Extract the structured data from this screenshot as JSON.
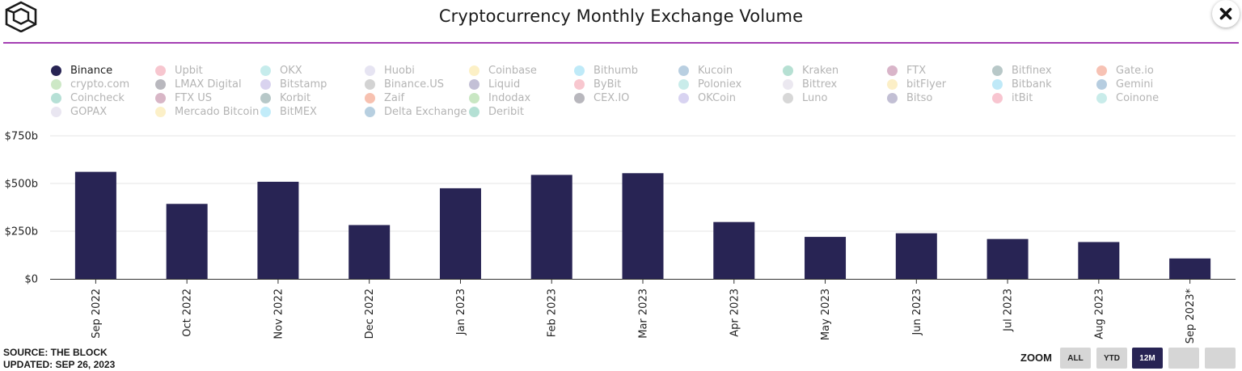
{
  "title": "Cryptocurrency Monthly Exchange Volume",
  "colors": {
    "bar": "#282454",
    "divider": "#a43fb3",
    "grid": "#e6e6e6"
  },
  "legend": [
    {
      "label": "Binance",
      "color": "#282454",
      "active": true
    },
    {
      "label": "Upbit",
      "color": "#f7c6cf",
      "active": false
    },
    {
      "label": "OKX",
      "color": "#c6ecec",
      "active": false
    },
    {
      "label": "Huobi",
      "color": "#e6e4f2",
      "active": false
    },
    {
      "label": "Coinbase",
      "color": "#fcf0c6",
      "active": false
    },
    {
      "label": "Bithumb",
      "color": "#bfeaf8",
      "active": false
    },
    {
      "label": "Kucoin",
      "color": "#b9cfe1",
      "active": false
    },
    {
      "label": "Kraken",
      "color": "#b6e0d3",
      "active": false
    },
    {
      "label": "FTX",
      "color": "#d9b5c9",
      "active": false
    },
    {
      "label": "Bitfinex",
      "color": "#b8c8c8",
      "active": false
    },
    {
      "label": "Gate.io",
      "color": "#f7c2b4",
      "active": false
    },
    {
      "label": "crypto.com",
      "color": "#cde8c6",
      "active": false
    },
    {
      "label": "LMAX Digital",
      "color": "#b9b8be",
      "active": false
    },
    {
      "label": "Bitstamp",
      "color": "#d9d3ef",
      "active": false
    },
    {
      "label": "Binance.US",
      "color": "#d3d3d3",
      "active": false
    },
    {
      "label": "Liquid",
      "color": "#c3c0d6",
      "active": false
    },
    {
      "label": "ByBit",
      "color": "#f8c7cf",
      "active": false
    },
    {
      "label": "Poloniex",
      "color": "#c9ecea",
      "active": false
    },
    {
      "label": "Bittrex",
      "color": "#ebe8f0",
      "active": false
    },
    {
      "label": "bitFlyer",
      "color": "#fcefc7",
      "active": false
    },
    {
      "label": "Bitbank",
      "color": "#bfe9f8",
      "active": false
    },
    {
      "label": "Gemini",
      "color": "#b6cde0",
      "active": false
    },
    {
      "label": "Coincheck",
      "color": "#b6e0d6",
      "active": false
    },
    {
      "label": "FTX US",
      "color": "#d8b6c6",
      "active": false
    },
    {
      "label": "Korbit",
      "color": "#b7c8c8",
      "active": false
    },
    {
      "label": "Zaif",
      "color": "#f7c1b0",
      "active": false
    },
    {
      "label": "Indodax",
      "color": "#c9e7c3",
      "active": false
    },
    {
      "label": "CEX.IO",
      "color": "#b8b7bd",
      "active": false
    },
    {
      "label": "OKCoin",
      "color": "#d8d3f1",
      "active": false
    },
    {
      "label": "Luno",
      "color": "#d7d7d7",
      "active": false
    },
    {
      "label": "Bitso",
      "color": "#c2bfd4",
      "active": false
    },
    {
      "label": "itBit",
      "color": "#f8c5d0",
      "active": false
    },
    {
      "label": "Coinone",
      "color": "#c9ecea",
      "active": false
    },
    {
      "label": "GOPAX",
      "color": "#e9e6f1",
      "active": false
    },
    {
      "label": "Mercado Bitcoin",
      "color": "#fcf0c8",
      "active": false
    },
    {
      "label": "BitMEX",
      "color": "#c2ecf9",
      "active": false
    },
    {
      "label": "Delta Exchange",
      "color": "#b7cfe0",
      "active": false
    },
    {
      "label": "Deribit",
      "color": "#b4e0d4",
      "active": false
    }
  ],
  "chart_data": {
    "type": "bar",
    "series": [
      {
        "name": "Binance",
        "values": [
          561,
          393,
          509,
          282,
          475,
          545,
          554,
          298,
          220,
          239,
          209,
          193,
          107
        ]
      }
    ],
    "categories": [
      "Sep 2022",
      "Oct 2022",
      "Nov 2022",
      "Dec 2022",
      "Jan 2023",
      "Feb 2023",
      "Mar 2023",
      "Apr 2023",
      "May 2023",
      "Jun 2023",
      "Jul 2023",
      "Aug 2023",
      "Sep 2023*"
    ],
    "yticks": [
      {
        "value": 0,
        "label": "$0"
      },
      {
        "value": 250,
        "label": "$250b"
      },
      {
        "value": 500,
        "label": "$500b"
      },
      {
        "value": 750,
        "label": "$750b"
      }
    ],
    "ylim": [
      0,
      750
    ],
    "unit": "billions USD",
    "title": "Cryptocurrency Monthly Exchange Volume",
    "grid": true
  },
  "footer": {
    "source": "SOURCE: THE BLOCK",
    "updated": "UPDATED: SEP 26, 2023"
  },
  "zoom": {
    "label": "ZOOM",
    "buttons": [
      {
        "label": "ALL",
        "active": false
      },
      {
        "label": "YTD",
        "active": false
      },
      {
        "label": "12M",
        "active": true
      },
      {
        "label": "",
        "active": false
      },
      {
        "label": "",
        "active": false
      }
    ]
  }
}
